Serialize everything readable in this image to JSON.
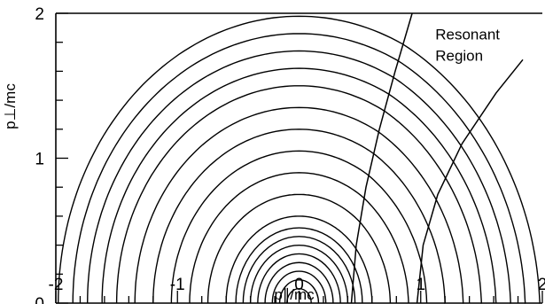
{
  "chart_data": {
    "type": "line",
    "title": "",
    "xlabel": "p∥/mc",
    "ylabel": "p⊥/mc",
    "xlim": [
      -2,
      2
    ],
    "ylim": [
      0,
      2
    ],
    "x_ticks": [
      {
        "value": -2,
        "label": "-2"
      },
      {
        "value": -1,
        "label": "-1"
      },
      {
        "value": 0,
        "label": "0"
      },
      {
        "value": 1,
        "label": "1"
      },
      {
        "value": 2,
        "label": "2"
      }
    ],
    "y_ticks": [
      {
        "value": 0,
        "label": "0"
      },
      {
        "value": 1,
        "label": "1"
      },
      {
        "value": 2,
        "label": "2"
      }
    ],
    "minor_tick_step": 0.2,
    "inner_contour_radii": [
      0.1,
      0.16,
      0.22,
      0.28,
      0.34,
      0.4,
      0.46,
      0.52
    ],
    "outer_contour_radii": [
      0.6,
      0.75,
      0.9,
      1.05,
      1.2,
      1.35,
      1.5,
      1.62,
      1.74,
      1.86,
      1.98
    ],
    "resonance_boundary_left": [
      [
        0.43,
        0.0
      ],
      [
        0.47,
        0.4
      ],
      [
        0.55,
        0.8
      ],
      [
        0.66,
        1.2
      ],
      [
        0.79,
        1.6
      ],
      [
        0.93,
        2.0
      ]
    ],
    "resonance_boundary_right": [
      [
        0.97,
        0.0
      ],
      [
        1.02,
        0.4
      ],
      [
        1.14,
        0.75
      ],
      [
        1.34,
        1.1
      ],
      [
        1.62,
        1.45
      ],
      [
        1.84,
        1.68
      ]
    ],
    "annotation": {
      "line1": "Resonant",
      "line2": "Region",
      "x": 1.12,
      "y": 1.93
    }
  }
}
